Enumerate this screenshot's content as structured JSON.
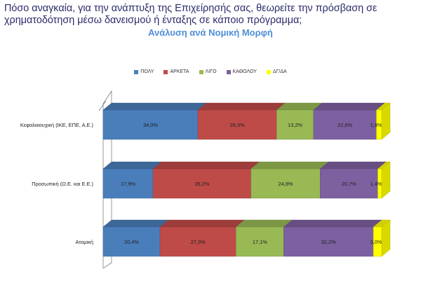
{
  "header": {
    "title": "Πόσο αναγκαία, για την ανάπτυξη της Επιχείρησής σας, θεωρείτε την πρόσβαση σε χρηματοδότηση μέσω δανεισμού ή ένταξης σε κάποιο πρόγραμμα;",
    "subtitle": "Ανάλυση ανά Νομική Μορφή"
  },
  "chart_data": {
    "type": "bar",
    "orientation": "horizontal",
    "stacked": "percent",
    "categories": [
      "Κεφαλαιουχική (ΙΚΕ, ΕΠΕ, Α.Ε.)",
      "Προσωπική (Ο.Ε. και Ε.Ε.)",
      "Ατομική"
    ],
    "series": [
      {
        "name": "ΠΟΛΥ",
        "color": "#4a7ebb",
        "values": [
          34.0,
          17.9,
          20.4
        ],
        "labels": [
          "34,0%",
          "17,9%",
          "20,4%"
        ]
      },
      {
        "name": "ΑΡΚΕΤΑ",
        "color": "#be4b48",
        "values": [
          28.3,
          35.2,
          27.3
        ],
        "labels": [
          "28,3%",
          "35,2%",
          "27,3%"
        ]
      },
      {
        "name": "ΛΙΓΟ",
        "color": "#98b954",
        "values": [
          13.2,
          24.8,
          17.1
        ],
        "labels": [
          "13,2%",
          "24,8%",
          "17,1%"
        ]
      },
      {
        "name": "ΚΑΘΟΛΟΥ",
        "color": "#7d60a0",
        "values": [
          22.6,
          20.7,
          32.2
        ],
        "labels": [
          "22,6%",
          "20,7%",
          "32,2%"
        ]
      },
      {
        "name": "ΔΓ/ΔΑ",
        "color": "#ffff00",
        "values": [
          1.9,
          1.4,
          3.0
        ],
        "labels": [
          "1,9%",
          "1,4%",
          "3,0%"
        ]
      }
    ],
    "legend_position": "top",
    "grid": false
  }
}
